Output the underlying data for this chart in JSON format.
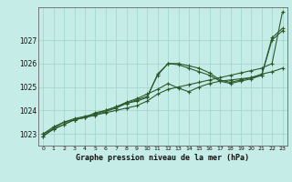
{
  "xlabel": "Graphe pression niveau de la mer (hPa)",
  "ylabel": "",
  "background_color": "#c5ece6",
  "grid_color": "#9dd4cd",
  "line_color": "#2d5a2d",
  "ylim": [
    1022.5,
    1028.4
  ],
  "xlim": [
    -0.5,
    23.5
  ],
  "yticks": [
    1023,
    1024,
    1025,
    1026,
    1027
  ],
  "xticks": [
    0,
    1,
    2,
    3,
    4,
    5,
    6,
    7,
    8,
    9,
    10,
    11,
    12,
    13,
    14,
    15,
    16,
    17,
    18,
    19,
    20,
    21,
    22,
    23
  ],
  "series": [
    [
      1023.0,
      1023.3,
      1023.5,
      1023.6,
      1023.7,
      1023.8,
      1023.9,
      1024.0,
      1024.1,
      1024.2,
      1024.4,
      1024.7,
      1024.9,
      1025.0,
      1025.1,
      1025.2,
      1025.3,
      1025.4,
      1025.5,
      1025.6,
      1025.7,
      1025.8,
      1026.0,
      1028.2
    ],
    [
      1023.0,
      1023.2,
      1023.4,
      1023.6,
      1023.7,
      1023.9,
      1024.0,
      1024.15,
      1024.3,
      1024.45,
      1024.6,
      1025.5,
      1026.0,
      1026.0,
      1025.9,
      1025.8,
      1025.6,
      1025.3,
      1025.2,
      1025.3,
      1025.4,
      1025.5,
      1027.1,
      1027.5
    ],
    [
      1022.9,
      1023.2,
      1023.4,
      1023.6,
      1023.7,
      1023.8,
      1023.95,
      1024.1,
      1024.3,
      1024.4,
      1024.55,
      1025.55,
      1026.0,
      1025.95,
      1025.8,
      1025.65,
      1025.5,
      1025.25,
      1025.15,
      1025.25,
      1025.35,
      1025.5,
      1027.0,
      1027.4
    ],
    [
      1022.9,
      1023.25,
      1023.5,
      1023.65,
      1023.75,
      1023.85,
      1024.0,
      1024.15,
      1024.35,
      1024.5,
      1024.7,
      1024.9,
      1025.15,
      1024.95,
      1024.8,
      1025.0,
      1025.15,
      1025.25,
      1025.3,
      1025.35,
      1025.4,
      1025.55,
      1025.65,
      1025.8
    ]
  ]
}
